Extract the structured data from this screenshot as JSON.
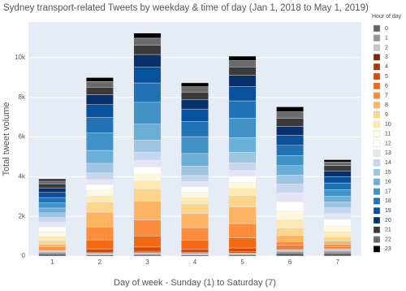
{
  "chart_data": {
    "type": "stacked_bar",
    "title": "Sydney transport-related Tweets by weekday & time of day (Jan 1, 2018 to May 1, 2019)",
    "x_label": "Day of week - Sunday (1) to Saturday (7)",
    "y_label": "Total tweet volume",
    "legend_title": "Hour of day",
    "categories": [
      "1",
      "2",
      "3",
      "4",
      "5",
      "6",
      "7"
    ],
    "ylim": [
      0,
      11800
    ],
    "yticks": [
      0,
      {
        "value": 2000,
        "label": "2k"
      },
      {
        "value": 4000,
        "label": "4k"
      },
      {
        "value": 6000,
        "label": "6k"
      },
      {
        "value": 8000,
        "label": "8k"
      },
      {
        "value": 10000,
        "label": "10k"
      }
    ],
    "grid": true,
    "series": [
      {
        "name": "0",
        "color": "#636363",
        "values": [
          120,
          60,
          75,
          58,
          67,
          150,
          150
        ]
      },
      {
        "name": "1",
        "color": "#969696",
        "values": [
          80,
          35,
          45,
          34,
          39,
          90,
          100
        ]
      },
      {
        "name": "2",
        "color": "#c8c8c8",
        "values": [
          48,
          25,
          30,
          24,
          28,
          50,
          60
        ]
      },
      {
        "name": "3",
        "color": "#7f2704",
        "values": [
          24,
          25,
          30,
          24,
          28,
          30,
          30
        ]
      },
      {
        "name": "4",
        "color": "#a63603",
        "values": [
          20,
          50,
          65,
          49,
          56,
          30,
          25
        ]
      },
      {
        "name": "5",
        "color": "#d94801",
        "values": [
          32,
          170,
          210,
          165,
          190,
          60,
          40
        ]
      },
      {
        "name": "6",
        "color": "#f16913",
        "values": [
          56,
          450,
          560,
          437,
          504,
          120,
          70
        ]
      },
      {
        "name": "7",
        "color": "#fd8d3c",
        "values": [
          88,
          650,
          810,
          631,
          728,
          200,
          110
        ]
      },
      {
        "name": "8",
        "color": "#fdb462",
        "values": [
          128,
          750,
          940,
          728,
          840,
          300,
          160
        ]
      },
      {
        "name": "9",
        "color": "#fdd58a",
        "values": [
          176,
          500,
          625,
          485,
          560,
          380,
          220
        ]
      },
      {
        "name": "10",
        "color": "#fee9b0",
        "values": [
          216,
          330,
          410,
          320,
          370,
          420,
          270
        ]
      },
      {
        "name": "11",
        "color": "#fff8de",
        "values": [
          240,
          280,
          350,
          272,
          314,
          450,
          300
        ]
      },
      {
        "name": "12",
        "color": "#ffffff",
        "values": [
          248,
          270,
          340,
          262,
          302,
          460,
          310
        ]
      },
      {
        "name": "13",
        "color": "#e6e4f2",
        "values": [
          240,
          270,
          340,
          262,
          302,
          450,
          300
        ]
      },
      {
        "name": "14",
        "color": "#c6d6ec",
        "values": [
          232,
          330,
          410,
          320,
          370,
          450,
          290
        ]
      },
      {
        "name": "15",
        "color": "#9ec4e0",
        "values": [
          232,
          480,
          600,
          466,
          538,
          450,
          290
        ]
      },
      {
        "name": "16",
        "color": "#6baed6",
        "values": [
          240,
          650,
          810,
          631,
          728,
          470,
          300
        ]
      },
      {
        "name": "17",
        "color": "#4292c6",
        "values": [
          256,
          880,
          1100,
          854,
          986,
          500,
          320
        ]
      },
      {
        "name": "18",
        "color": "#2171b5",
        "values": [
          272,
          780,
          975,
          757,
          874,
          520,
          340
        ]
      },
      {
        "name": "19",
        "color": "#08519c",
        "values": [
          256,
          650,
          810,
          631,
          728,
          500,
          320
        ]
      },
      {
        "name": "20",
        "color": "#08306b",
        "values": [
          232,
          500,
          625,
          485,
          560,
          450,
          290
        ]
      },
      {
        "name": "21",
        "color": "#3a3a3a",
        "values": [
          208,
          380,
          475,
          369,
          426,
          420,
          260
        ]
      },
      {
        "name": "22",
        "color": "#6a6a6a",
        "values": [
          144,
          280,
          350,
          272,
          314,
          320,
          180
        ]
      },
      {
        "name": "23",
        "color": "#000000",
        "values": [
          96,
          200,
          250,
          194,
          224,
          250,
          120
        ]
      }
    ]
  }
}
